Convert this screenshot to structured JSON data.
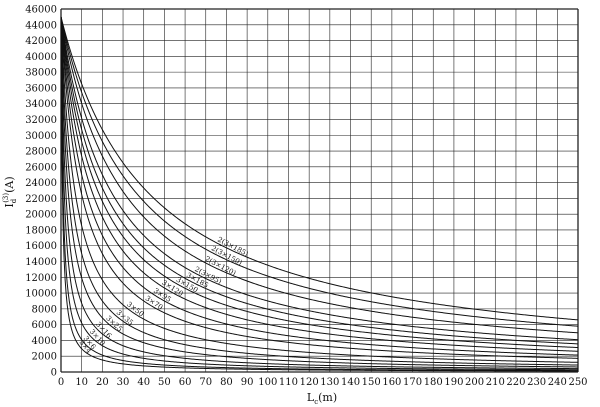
{
  "chart_data": {
    "type": "line",
    "title": "",
    "xlabel": {
      "main": "L",
      "sub": "c",
      "unit": "(m)"
    },
    "ylabel": {
      "main": "I",
      "sub": "d",
      "sup": "(3)",
      "unit": "(A)"
    },
    "xlim": [
      0,
      250
    ],
    "ylim": [
      0,
      46000
    ],
    "grid": true,
    "x_ticks": [
      0,
      10,
      20,
      30,
      40,
      50,
      60,
      70,
      80,
      90,
      100,
      110,
      120,
      130,
      140,
      150,
      160,
      170,
      180,
      190,
      200,
      210,
      220,
      230,
      240,
      250
    ],
    "y_ticks": [
      0,
      2000,
      4000,
      6000,
      8000,
      10000,
      12000,
      14000,
      16000,
      18000,
      20000,
      22000,
      24000,
      26000,
      28000,
      30000,
      32000,
      34000,
      36000,
      38000,
      40000,
      42000,
      44000,
      46000
    ],
    "i0": 45000,
    "series": [
      {
        "name": "2(3×185)",
        "half_length": 43,
        "label_at": 75
      },
      {
        "name": "2(3×150)",
        "half_length": 37,
        "label_at": 72
      },
      {
        "name": "2(3×120)",
        "half_length": 31,
        "label_at": 69
      },
      {
        "name": "2(3×95)",
        "half_length": 25,
        "label_at": 64
      },
      {
        "name": "3×185",
        "half_length": 21.5,
        "label_at": 60
      },
      {
        "name": "3×150",
        "half_length": 18.5,
        "label_at": 55
      },
      {
        "name": "3×120",
        "half_length": 15.5,
        "label_at": 48
      },
      {
        "name": "3×95",
        "half_length": 12.5,
        "label_at": 44
      },
      {
        "name": "3×70",
        "half_length": 10,
        "label_at": 40
      },
      {
        "name": "3×50",
        "half_length": 7,
        "label_at": 31
      },
      {
        "name": "3×35",
        "half_length": 5,
        "label_at": 26
      },
      {
        "name": "3×25",
        "half_length": 3.6,
        "label_at": 21
      },
      {
        "name": "3×16",
        "half_length": 2.4,
        "label_at": 16
      },
      {
        "name": "3×10",
        "half_length": 1.6,
        "label_at": 13
      },
      {
        "name": "3×6",
        "half_length": 1,
        "label_at": 10
      },
      {
        "name": "3×4",
        "half_length": 0.7,
        "label_at": 8
      }
    ]
  }
}
